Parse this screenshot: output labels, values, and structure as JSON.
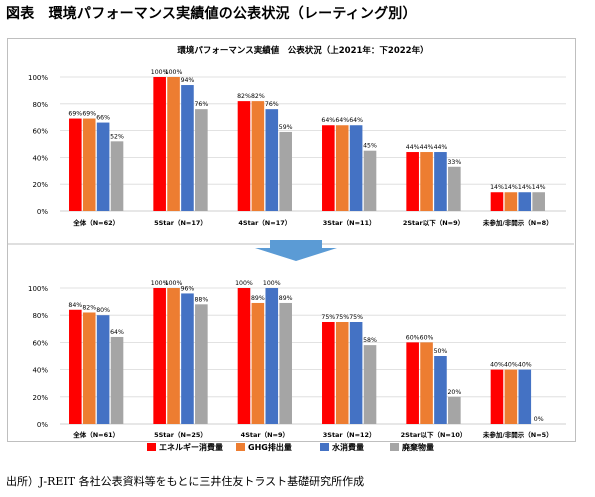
{
  "page": {
    "title": "図表　環境パフォーマンス実績値の公表状況（レーティング別）",
    "source": "出所）J-REIT 各社公表資料等をもとに三井住友トラスト基礎研究所作成"
  },
  "colors": {
    "series": [
      "#ff0000",
      "#ed7d31",
      "#4472c4",
      "#a5a5a5"
    ],
    "arrow": "#5b9bd5",
    "grid": "#d9d9d9",
    "divider": "#bfbfbf"
  },
  "chart_data": [
    {
      "type": "bar",
      "title": "環境パフォーマンス実績値　公表状況（上2021年：下2022年）",
      "categories": [
        "全体（N=62）",
        "5Star（N=17）",
        "4Star（N=17）",
        "3Star（N=11）",
        "2Star以下（N=9）",
        "未参加/非開示（N=8）"
      ],
      "series": [
        {
          "name": "エネルギー消費量",
          "values": [
            69,
            100,
            82,
            64,
            44,
            14
          ]
        },
        {
          "name": "GHG排出量",
          "values": [
            69,
            100,
            82,
            64,
            44,
            14
          ]
        },
        {
          "name": "水消費量",
          "values": [
            66,
            94,
            76,
            64,
            44,
            14
          ]
        },
        {
          "name": "廃棄物量",
          "values": [
            52,
            76,
            59,
            45,
            33,
            14
          ]
        }
      ],
      "ylim": [
        0,
        100
      ],
      "yticks": [
        "0%",
        "20%",
        "40%",
        "60%",
        "80%",
        "100%"
      ],
      "grid": true
    },
    {
      "type": "bar",
      "title": "",
      "categories": [
        "全体（N=61）",
        "5Star（N=25）",
        "4Star（N=9）",
        "3Star（N=12）",
        "2Star以下（N=10）",
        "未参加/非開示（N=5）"
      ],
      "series": [
        {
          "name": "エネルギー消費量",
          "values": [
            84,
            100,
            100,
            75,
            60,
            40
          ]
        },
        {
          "name": "GHG排出量",
          "values": [
            82,
            100,
            89,
            75,
            60,
            40
          ]
        },
        {
          "name": "水消費量",
          "values": [
            80,
            96,
            100,
            75,
            50,
            40
          ]
        },
        {
          "name": "廃棄物量",
          "values": [
            64,
            88,
            89,
            58,
            20,
            0
          ]
        }
      ],
      "ylim": [
        0,
        100
      ],
      "yticks": [
        "0%",
        "20%",
        "40%",
        "60%",
        "80%",
        "100%"
      ],
      "grid": true,
      "legend": "bottom"
    }
  ],
  "legend": [
    "エネルギー消費量",
    "GHG排出量",
    "水消費量",
    "廃棄物量"
  ]
}
